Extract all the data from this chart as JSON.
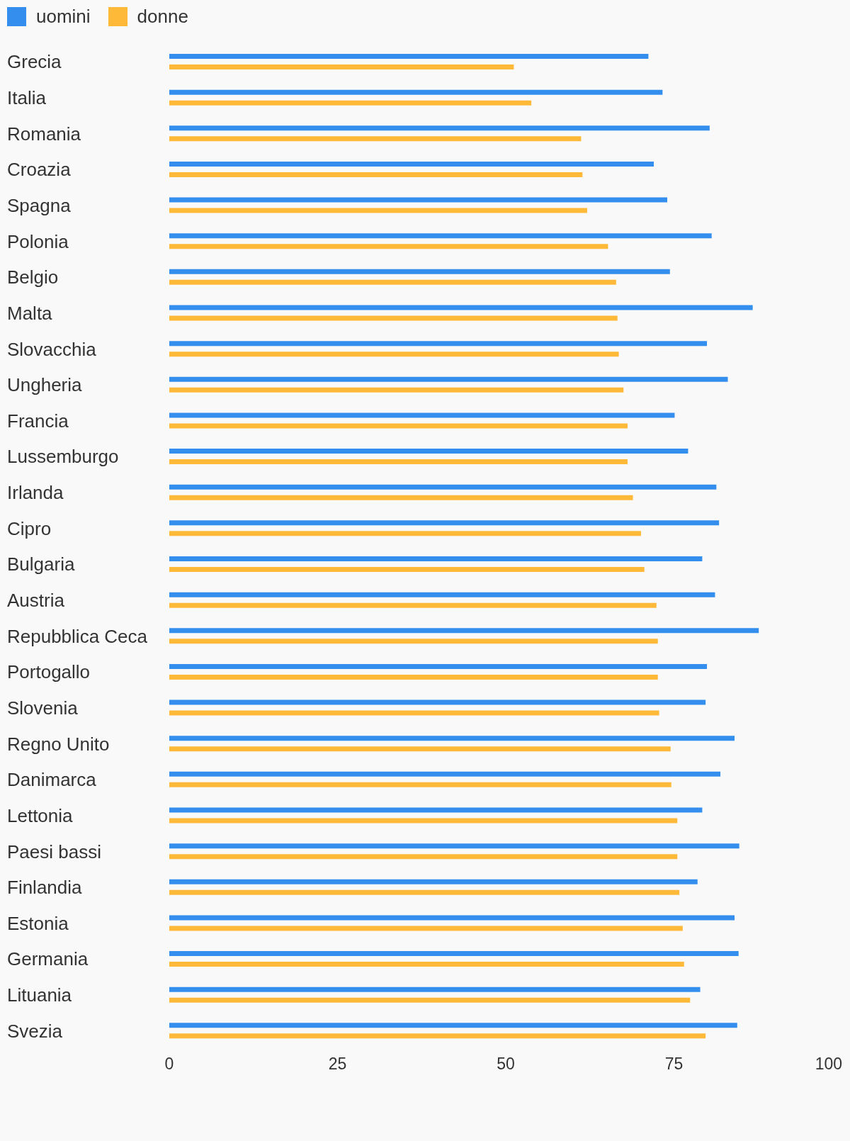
{
  "chart_data": {
    "type": "bar",
    "orientation": "horizontal",
    "categories": [
      "Grecia",
      "Italia",
      "Romania",
      "Croazia",
      "Spagna",
      "Polonia",
      "Belgio",
      "Malta",
      "Slovacchia",
      "Ungheria",
      "Francia",
      "Lussemburgo",
      "Irlanda",
      "Cipro",
      "Bulgaria",
      "Austria",
      "Repubblica Ceca",
      "Portogallo",
      "Slovenia",
      "Regno Unito",
      "Danimarca",
      "Lettonia",
      "Paesi bassi",
      "Finlandia",
      "Estonia",
      "Germania",
      "Lituania",
      "Svezia"
    ],
    "series": [
      {
        "name": "uomini",
        "color": "#338eee",
        "values": [
          71.2,
          73.3,
          80.3,
          72.0,
          74.0,
          80.6,
          74.4,
          86.7,
          79.9,
          83.0,
          75.1,
          77.1,
          81.3,
          81.7,
          79.2,
          81.1,
          87.6,
          79.9,
          79.7,
          84.0,
          81.9,
          79.2,
          84.7,
          78.5,
          84.0,
          84.6,
          78.9,
          84.4
        ]
      },
      {
        "name": "donne",
        "color": "#ffb938",
        "values": [
          51.2,
          53.8,
          61.2,
          61.4,
          62.1,
          65.2,
          66.4,
          66.6,
          66.8,
          67.5,
          68.1,
          68.1,
          68.9,
          70.1,
          70.6,
          72.4,
          72.6,
          72.6,
          72.8,
          74.5,
          74.6,
          75.5,
          75.5,
          75.8,
          76.3,
          76.5,
          77.4,
          79.7
        ]
      }
    ],
    "xlim": [
      0,
      100
    ],
    "xticks": [
      0,
      25,
      50,
      75,
      100
    ],
    "legend": "top left"
  }
}
